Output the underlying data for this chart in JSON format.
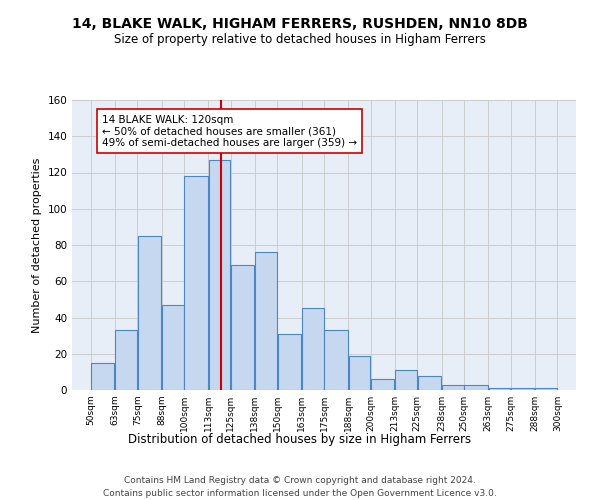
{
  "title": "14, BLAKE WALK, HIGHAM FERRERS, RUSHDEN, NN10 8DB",
  "subtitle": "Size of property relative to detached houses in Higham Ferrers",
  "xlabel": "Distribution of detached houses by size in Higham Ferrers",
  "ylabel": "Number of detached properties",
  "footer1": "Contains HM Land Registry data © Crown copyright and database right 2024.",
  "footer2": "Contains public sector information licensed under the Open Government Licence v3.0.",
  "annotation_line1": "14 BLAKE WALK: 120sqm",
  "annotation_line2": "← 50% of detached houses are smaller (361)",
  "annotation_line3": "49% of semi-detached houses are larger (359) →",
  "bar_left_edges": [
    50,
    63,
    75,
    88,
    100,
    113,
    125,
    138,
    150,
    163,
    175,
    188,
    200,
    213,
    225,
    238,
    250,
    263,
    275,
    288
  ],
  "bar_widths": [
    13,
    12,
    13,
    12,
    13,
    12,
    13,
    12,
    13,
    12,
    13,
    12,
    13,
    12,
    13,
    12,
    13,
    12,
    13,
    12
  ],
  "bar_heights": [
    15,
    33,
    85,
    47,
    118,
    127,
    69,
    76,
    31,
    45,
    33,
    19,
    6,
    11,
    8,
    3,
    3,
    1,
    1,
    1
  ],
  "bar_color": "#c5d8f0",
  "bar_edge_color": "#4a86c8",
  "reference_line_x": 120,
  "reference_line_color": "#cc0000",
  "tick_labels": [
    "50sqm",
    "63sqm",
    "75sqm",
    "88sqm",
    "100sqm",
    "113sqm",
    "125sqm",
    "138sqm",
    "150sqm",
    "163sqm",
    "175sqm",
    "188sqm",
    "200sqm",
    "213sqm",
    "225sqm",
    "238sqm",
    "250sqm",
    "263sqm",
    "275sqm",
    "288sqm",
    "300sqm"
  ],
  "tick_positions": [
    50,
    63,
    75,
    88,
    100,
    113,
    125,
    138,
    150,
    163,
    175,
    188,
    200,
    213,
    225,
    238,
    250,
    263,
    275,
    288,
    300
  ],
  "ylim": [
    0,
    160
  ],
  "xlim": [
    40,
    310
  ],
  "yticks": [
    0,
    20,
    40,
    60,
    80,
    100,
    120,
    140,
    160
  ],
  "grid_color": "#cccccc",
  "plot_bg_color": "#e8eef8",
  "title_fontsize": 10,
  "subtitle_fontsize": 8.5,
  "ylabel_fontsize": 8,
  "xlabel_fontsize": 8.5,
  "tick_fontsize": 6.5,
  "annotation_fontsize": 7.5,
  "footer_fontsize": 6.5
}
